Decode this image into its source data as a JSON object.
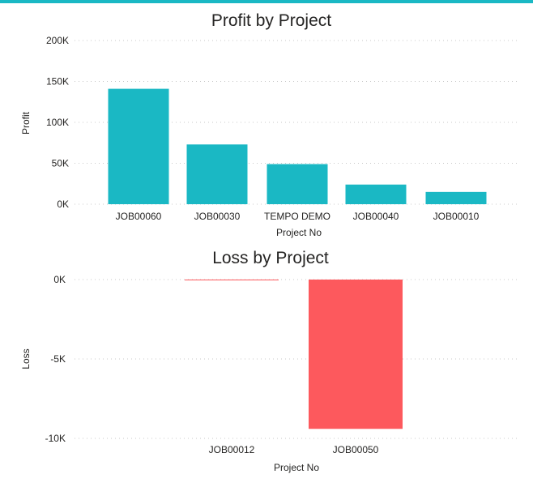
{
  "colors": {
    "accent_bar": "#1AB8C4",
    "profit_bar": "#1AB8C4",
    "loss_bar": "#FD595D"
  },
  "chart_data": [
    {
      "type": "bar",
      "title": "Profit by Project",
      "xlabel": "Project No",
      "ylabel": "Profit",
      "categories": [
        "JOB00060",
        "JOB00030",
        "TEMPO DEMO",
        "JOB00040",
        "JOB00010"
      ],
      "values": [
        141000,
        73000,
        49000,
        24000,
        15000
      ],
      "ylim": [
        0,
        200000
      ],
      "yticks": [
        0,
        50000,
        100000,
        150000,
        200000
      ],
      "ytick_labels": [
        "0K",
        "50K",
        "100K",
        "150K",
        "200K"
      ],
      "grid": true,
      "color": "#1AB8C4"
    },
    {
      "type": "bar",
      "title": "Loss by Project",
      "xlabel": "Project No",
      "ylabel": "Loss",
      "categories": [
        "JOB00012",
        "JOB00050"
      ],
      "values": [
        -10,
        -9400
      ],
      "ylim": [
        -10000,
        0
      ],
      "yticks": [
        0,
        -5000,
        -10000
      ],
      "ytick_labels": [
        "0K",
        "-5K",
        "-10K"
      ],
      "grid": true,
      "color": "#FD595D"
    }
  ]
}
